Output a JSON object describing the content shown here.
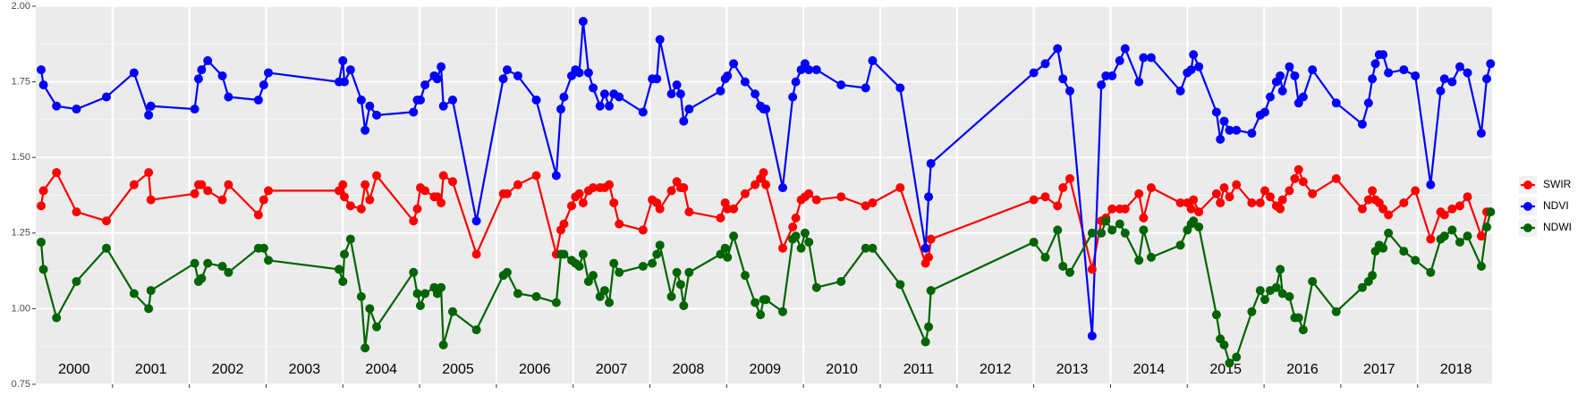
{
  "chart_data": {
    "type": "line",
    "x": [
      2000.07,
      2000.1,
      2000.27,
      2000.53,
      2000.92,
      2001.28,
      2001.47,
      2001.5,
      2002.07,
      2002.12,
      2002.16,
      2002.24,
      2002.43,
      2002.51,
      2002.9,
      2002.97,
      2003.03,
      2003.95,
      2004.0,
      2004.02,
      2004.1,
      2004.24,
      2004.29,
      2004.35,
      2004.44,
      2004.92,
      2004.97,
      2005.01,
      2005.07,
      2005.19,
      2005.23,
      2005.28,
      2005.31,
      2005.43,
      2005.74,
      2006.09,
      2006.14,
      2006.28,
      2006.52,
      2006.78,
      2006.84,
      2006.88,
      2006.98,
      2007.03,
      2007.08,
      2007.13,
      2007.2,
      2007.26,
      2007.35,
      2007.41,
      2007.47,
      2007.53,
      2007.6,
      2007.91,
      2008.03,
      2008.09,
      2008.13,
      2008.28,
      2008.35,
      2008.4,
      2008.44,
      2008.51,
      2008.92,
      2008.98,
      2009.01,
      2009.09,
      2009.24,
      2009.37,
      2009.44,
      2009.48,
      2009.51,
      2009.73,
      2009.86,
      2009.9,
      2009.97,
      2010.02,
      2010.07,
      2010.17,
      2010.49,
      2010.81,
      2010.9,
      2011.26,
      2011.59,
      2011.63,
      2011.66,
      2013.0,
      2013.15,
      2013.31,
      2013.38,
      2013.47,
      2013.76,
      2013.88,
      2013.94,
      2014.02,
      2014.12,
      2014.19,
      2014.37,
      2014.43,
      2014.53,
      2014.91,
      2015.0,
      2015.05,
      2015.08,
      2015.15,
      2015.38,
      2015.43,
      2015.48,
      2015.55,
      2015.64,
      2015.84,
      2015.95,
      2016.01,
      2016.08,
      2016.16,
      2016.21,
      2016.24,
      2016.33,
      2016.4,
      2016.45,
      2016.51,
      2016.63,
      2016.94,
      2017.28,
      2017.36,
      2017.41,
      2017.45,
      2017.5,
      2017.55,
      2017.62,
      2017.82,
      2017.97,
      2018.17,
      2018.3,
      2018.35,
      2018.45,
      2018.55,
      2018.65,
      2018.83,
      2018.9,
      2018.95
    ],
    "series": [
      {
        "name": "SWIR",
        "color": "#ff0000",
        "values": [
          1.34,
          1.39,
          1.45,
          1.32,
          1.29,
          1.41,
          1.45,
          1.36,
          1.38,
          1.41,
          1.41,
          1.39,
          1.36,
          1.41,
          1.31,
          1.36,
          1.39,
          1.39,
          1.41,
          1.37,
          1.34,
          1.33,
          1.41,
          1.36,
          1.44,
          1.29,
          1.33,
          1.4,
          1.39,
          1.37,
          1.37,
          1.35,
          1.44,
          1.42,
          1.18,
          1.38,
          1.38,
          1.41,
          1.44,
          1.18,
          1.26,
          1.28,
          1.34,
          1.37,
          1.38,
          1.35,
          1.39,
          1.4,
          1.4,
          1.4,
          1.41,
          1.35,
          1.28,
          1.26,
          1.36,
          1.35,
          1.33,
          1.39,
          1.42,
          1.4,
          1.4,
          1.32,
          1.3,
          1.35,
          1.33,
          1.33,
          1.38,
          1.41,
          1.43,
          1.45,
          1.41,
          1.2,
          1.27,
          1.3,
          1.36,
          1.37,
          1.38,
          1.36,
          1.37,
          1.34,
          1.35,
          1.4,
          1.15,
          1.17,
          1.23,
          1.36,
          1.37,
          1.34,
          1.4,
          1.43,
          1.13,
          1.29,
          1.3,
          1.33,
          1.33,
          1.33,
          1.38,
          1.3,
          1.4,
          1.35,
          1.35,
          1.33,
          1.36,
          1.32,
          1.38,
          1.35,
          1.4,
          1.37,
          1.41,
          1.35,
          1.35,
          1.39,
          1.37,
          1.34,
          1.33,
          1.36,
          1.39,
          1.43,
          1.46,
          1.42,
          1.38,
          1.43,
          1.33,
          1.36,
          1.39,
          1.36,
          1.35,
          1.33,
          1.31,
          1.35,
          1.39,
          1.23,
          1.32,
          1.31,
          1.33,
          1.34,
          1.37,
          1.24,
          1.32,
          1.32
        ]
      },
      {
        "name": "NDVI",
        "color": "#0000ff",
        "values": [
          1.79,
          1.74,
          1.67,
          1.66,
          1.7,
          1.78,
          1.64,
          1.67,
          1.66,
          1.76,
          1.79,
          1.82,
          1.77,
          1.7,
          1.69,
          1.74,
          1.78,
          1.75,
          1.82,
          1.75,
          1.79,
          1.69,
          1.59,
          1.67,
          1.64,
          1.65,
          1.69,
          1.69,
          1.74,
          1.77,
          1.76,
          1.8,
          1.67,
          1.69,
          1.29,
          1.76,
          1.79,
          1.77,
          1.69,
          1.44,
          1.66,
          1.7,
          1.77,
          1.79,
          1.78,
          1.95,
          1.78,
          1.73,
          1.67,
          1.71,
          1.67,
          1.71,
          1.7,
          1.65,
          1.76,
          1.76,
          1.89,
          1.71,
          1.74,
          1.71,
          1.62,
          1.66,
          1.72,
          1.76,
          1.77,
          1.81,
          1.75,
          1.71,
          1.67,
          1.66,
          1.66,
          1.4,
          1.7,
          1.75,
          1.79,
          1.81,
          1.79,
          1.79,
          1.74,
          1.73,
          1.82,
          1.73,
          1.2,
          1.37,
          1.48,
          1.78,
          1.81,
          1.86,
          1.76,
          1.72,
          0.91,
          1.74,
          1.77,
          1.77,
          1.82,
          1.86,
          1.75,
          1.83,
          1.83,
          1.72,
          1.78,
          1.79,
          1.84,
          1.8,
          1.65,
          1.56,
          1.62,
          1.59,
          1.59,
          1.58,
          1.64,
          1.65,
          1.7,
          1.75,
          1.77,
          1.72,
          1.8,
          1.77,
          1.68,
          1.7,
          1.79,
          1.68,
          1.61,
          1.68,
          1.76,
          1.81,
          1.84,
          1.84,
          1.78,
          1.79,
          1.77,
          1.41,
          1.72,
          1.76,
          1.75,
          1.8,
          1.78,
          1.58,
          1.76,
          1.81
        ]
      },
      {
        "name": "NDWI",
        "color": "#006400",
        "values": [
          1.22,
          1.13,
          0.97,
          1.09,
          1.2,
          1.05,
          1.0,
          1.06,
          1.15,
          1.09,
          1.1,
          1.15,
          1.14,
          1.12,
          1.2,
          1.2,
          1.16,
          1.13,
          1.09,
          1.18,
          1.23,
          1.04,
          0.87,
          1.0,
          0.94,
          1.12,
          1.05,
          1.01,
          1.05,
          1.07,
          1.05,
          1.07,
          0.88,
          0.99,
          0.93,
          1.11,
          1.12,
          1.05,
          1.04,
          1.02,
          1.18,
          1.18,
          1.16,
          1.15,
          1.14,
          1.18,
          1.09,
          1.11,
          1.04,
          1.06,
          1.02,
          1.15,
          1.12,
          1.14,
          1.15,
          1.18,
          1.21,
          1.04,
          1.12,
          1.08,
          1.01,
          1.12,
          1.18,
          1.2,
          1.17,
          1.24,
          1.11,
          1.02,
          0.98,
          1.03,
          1.03,
          0.99,
          1.23,
          1.24,
          1.2,
          1.25,
          1.22,
          1.07,
          1.09,
          1.2,
          1.2,
          1.08,
          0.89,
          0.94,
          1.06,
          1.22,
          1.17,
          1.26,
          1.14,
          1.12,
          1.25,
          1.25,
          1.29,
          1.26,
          1.28,
          1.25,
          1.16,
          1.26,
          1.17,
          1.21,
          1.26,
          1.28,
          1.29,
          1.27,
          0.98,
          0.9,
          0.88,
          0.82,
          0.84,
          0.99,
          1.06,
          1.03,
          1.06,
          1.07,
          1.13,
          1.05,
          1.04,
          0.97,
          0.97,
          0.93,
          1.09,
          0.99,
          1.07,
          1.09,
          1.11,
          1.19,
          1.21,
          1.2,
          1.25,
          1.19,
          1.16,
          1.12,
          1.23,
          1.24,
          1.26,
          1.22,
          1.24,
          1.14,
          1.27,
          1.32
        ]
      }
    ],
    "xlim": [
      2000,
      2018.97
    ],
    "xticks": [
      2000,
      2001,
      2002,
      2003,
      2004,
      2005,
      2006,
      2007,
      2008,
      2009,
      2010,
      2011,
      2012,
      2013,
      2014,
      2015,
      2016,
      2017,
      2018
    ],
    "ylim": [
      0.75,
      2.0
    ],
    "yticks": [
      {
        "value": 0.75,
        "label": "0.75"
      },
      {
        "value": 1.0,
        "label": "1.00"
      },
      {
        "value": 1.25,
        "label": "1.25"
      },
      {
        "value": 1.5,
        "label": "1.50"
      },
      {
        "value": 1.75,
        "label": "1.75"
      },
      {
        "value": 2.0,
        "label": "2.00"
      }
    ],
    "grid": true,
    "legend": "right"
  }
}
